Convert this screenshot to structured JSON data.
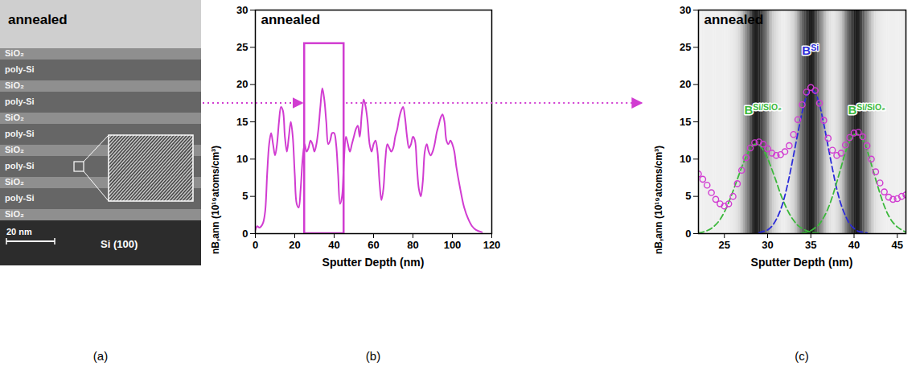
{
  "figure": {
    "panel_labels": [
      "(a)",
      "(b)",
      "(c)"
    ],
    "panel_a": {
      "title": "annealed",
      "layers": [
        "SiO₂",
        "poly-Si",
        "SiO₂",
        "poly-Si",
        "SiO₂",
        "poly-Si",
        "SiO₂",
        "poly-Si",
        "SiO₂",
        "poly-Si",
        "SiO₂"
      ],
      "substrate": "Si (100)",
      "scale_bar": "20 nm"
    }
  },
  "chart_data": [
    {
      "type": "line",
      "title": "annealed",
      "x_label": "Sputter Depth (nm)",
      "y_label": "nB,ann (10¹⁹atoms/cm³)",
      "x": [
        0,
        1,
        2,
        3,
        4,
        5,
        6,
        7,
        8,
        9,
        10,
        11,
        12,
        13,
        14,
        15,
        16,
        17,
        18,
        19,
        20,
        21,
        22,
        23,
        24,
        25,
        26,
        27,
        28,
        29,
        30,
        31,
        32,
        33,
        34,
        35,
        36,
        37,
        38,
        39,
        40,
        41,
        42,
        43,
        44,
        45,
        46,
        47,
        48,
        49,
        50,
        51,
        52,
        53,
        54,
        55,
        56,
        57,
        58,
        59,
        60,
        61,
        62,
        63,
        64,
        65,
        66,
        67,
        68,
        69,
        70,
        71,
        72,
        73,
        74,
        75,
        76,
        77,
        78,
        79,
        80,
        81,
        82,
        83,
        84,
        85,
        86,
        87,
        88,
        89,
        90,
        91,
        92,
        93,
        94,
        95,
        96,
        97,
        98,
        99,
        100,
        101,
        102,
        104,
        106,
        108,
        110,
        112,
        115
      ],
      "values": [
        0.5,
        1,
        0.8,
        1,
        1.5,
        3,
        8,
        12,
        13.5,
        12,
        10.5,
        12,
        15,
        17,
        16.5,
        13,
        11,
        13,
        15,
        13,
        8,
        4,
        3.5,
        6,
        10,
        12,
        11,
        11.5,
        12.5,
        12,
        11,
        12,
        14,
        17,
        19.5,
        18,
        15,
        12,
        12.5,
        13.5,
        13.5,
        12,
        8,
        4,
        5,
        10,
        13,
        12,
        11,
        12,
        13,
        14,
        14.5,
        13,
        16,
        18,
        17,
        15,
        12,
        11,
        12,
        12.5,
        11,
        7,
        4.5,
        6,
        10,
        12,
        11.5,
        11,
        11.5,
        13,
        14,
        15.5,
        16.5,
        17,
        15.5,
        13,
        11.5,
        12,
        13,
        12.5,
        9,
        6,
        5,
        7,
        11,
        12,
        11,
        10.5,
        11,
        12,
        13.5,
        14.5,
        15.5,
        16,
        15,
        12.5,
        12,
        12.5,
        12,
        11,
        9,
        6,
        3.5,
        2,
        1,
        0.5,
        0.2
      ],
      "color": "#d13cd1",
      "line_style": "solid",
      "highlight": {
        "x": [
          25,
          45
        ],
        "y": [
          0,
          25.5
        ],
        "color": "#d13cd1"
      },
      "xlim": [
        0,
        120
      ],
      "xticks": [
        0,
        20,
        40,
        60,
        80,
        100,
        120
      ],
      "ylim": [
        0,
        30
      ],
      "yticks": [
        0,
        5,
        10,
        15,
        20,
        25,
        30
      ],
      "grid": false
    },
    {
      "type": "scatter",
      "title": "annealed",
      "x_label": "Sputter Depth (nm)",
      "y_label": "nB,ann (10¹⁹atoms/cm³)",
      "series": [
        {
          "type": "line",
          "line_style": "dashed",
          "color": "#3cb83c",
          "x": [
            22,
            22.5,
            23,
            23.5,
            24,
            24.5,
            25,
            25.5,
            26,
            26.5,
            27,
            27.5,
            28,
            28.5,
            29,
            29.5,
            30,
            30.5,
            31,
            31.5,
            32,
            32.5,
            33,
            33.5,
            34,
            34.5,
            35,
            35.5,
            36
          ],
          "values": [
            0.1,
            0.2,
            0.4,
            0.7,
            1.2,
            1.9,
            2.9,
            4.2,
            5.7,
            7.3,
            8.9,
            10.3,
            11.4,
            12.0,
            11.9,
            11.2,
            10.1,
            8.6,
            7.0,
            5.3,
            3.9,
            2.7,
            1.8,
            1.1,
            0.7,
            0.4,
            0.2,
            0.1,
            0.1
          ]
        },
        {
          "type": "line",
          "line_style": "dashed",
          "color": "#2b2bd9",
          "x": [
            29,
            29.5,
            30,
            30.5,
            31,
            31.5,
            32,
            32.5,
            33,
            33.5,
            34,
            34.5,
            35,
            35.5,
            36,
            36.5,
            37,
            37.5,
            38,
            38.5,
            39,
            39.5,
            40,
            40.5,
            41,
            41.5
          ],
          "values": [
            0.1,
            0.3,
            0.5,
            1.0,
            1.9,
            3.2,
            5.1,
            7.6,
            10.5,
            13.5,
            16.3,
            18.4,
            19.3,
            18.9,
            17.3,
            14.7,
            11.7,
            8.7,
            6.0,
            3.9,
            2.4,
            1.3,
            0.7,
            0.3,
            0.2,
            0.1
          ]
        },
        {
          "type": "line",
          "line_style": "dashed",
          "color": "#3cb83c",
          "x": [
            34,
            34.5,
            35,
            35.5,
            36,
            36.5,
            37,
            37.5,
            38,
            38.5,
            39,
            39.5,
            40,
            40.5,
            41,
            41.5,
            42,
            42.5,
            43,
            43.5,
            44,
            44.5,
            45,
            45.5,
            46
          ],
          "values": [
            0.1,
            0.2,
            0.4,
            0.8,
            1.3,
            2.2,
            3.4,
            5.0,
            6.9,
            8.9,
            10.9,
            12.4,
            13.3,
            13.3,
            12.6,
            11.2,
            9.3,
            7.3,
            5.4,
            3.7,
            2.4,
            1.5,
            0.9,
            0.5,
            0.2
          ]
        },
        {
          "type": "scatter",
          "marker": "circle-open",
          "color": "#d13cd1",
          "x": [
            22,
            22.5,
            23,
            23.5,
            24,
            24.5,
            25,
            25.5,
            26,
            26.5,
            27,
            27.5,
            28,
            28.5,
            29,
            29.5,
            30,
            30.5,
            31,
            31.5,
            32,
            32.5,
            33,
            33.5,
            34,
            34.5,
            35,
            35.5,
            36,
            36.5,
            37,
            37.5,
            38,
            38.5,
            39,
            39.5,
            40,
            40.5,
            41,
            41.5,
            42,
            42.5,
            43,
            43.5,
            44,
            44.5,
            45,
            45.5,
            46
          ],
          "values": [
            8,
            7.3,
            6.5,
            5.5,
            4.6,
            4.0,
            3.7,
            4.0,
            5.0,
            6.7,
            8.5,
            10.2,
            11.5,
            12.2,
            12.3,
            12.0,
            11.4,
            10.8,
            10.5,
            10.6,
            11.0,
            11.8,
            13.3,
            15.3,
            17.3,
            19.0,
            19.6,
            19.2,
            17.5,
            15.2,
            12.8,
            11.2,
            10.5,
            10.8,
            11.9,
            12.9,
            13.5,
            13.6,
            13.0,
            11.8,
            10.0,
            8.3,
            6.8,
            5.6,
            4.9,
            4.6,
            4.7,
            5.0,
            5.2
          ]
        }
      ],
      "annotations": [
        {
          "text": "B",
          "sup": "Si/SiO₂",
          "x": 29.5,
          "y": 16,
          "color": "#3cb83c"
        },
        {
          "text": "B",
          "sup": "Si",
          "x": 35,
          "y": 24,
          "color": "#2b2bd9"
        },
        {
          "text": "B",
          "sup": "Si/SiO₂",
          "x": 41.5,
          "y": 16,
          "color": "#3cb83c"
        }
      ],
      "tem_dark_bands": [
        28.8,
        35,
        40.3
      ],
      "xlim": [
        22,
        46
      ],
      "xticks": [
        25,
        30,
        35,
        40,
        45
      ],
      "ylim": [
        0,
        30
      ],
      "yticks": [
        0,
        5,
        10,
        15,
        20,
        25,
        30
      ],
      "grid": false
    }
  ]
}
